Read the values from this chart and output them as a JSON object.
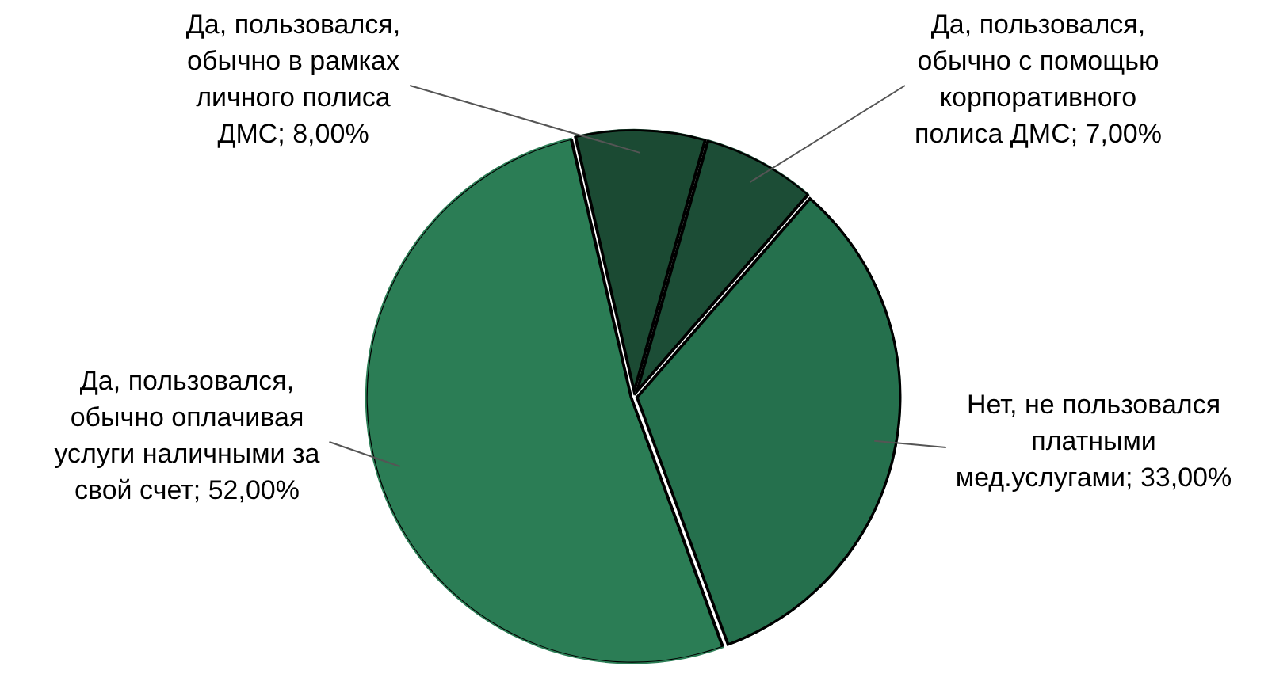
{
  "chart_data": {
    "type": "pie",
    "categories": [
      "Да, пользовался, обычно в рамках личного полиса ДМС",
      "Да, пользовался, обычно с помощью корпоративного полиса ДМС",
      "Нет, не пользовался платными мед.услугами",
      "Да, пользовался, обычно оплачивая услуги наличными за свой счет"
    ],
    "values": [
      8,
      7,
      33,
      52
    ],
    "colors": [
      "#1b4a33",
      "#1c4d36",
      "#25704d",
      "#2b7d55"
    ],
    "value_labels": [
      "8,00%",
      "7,00%",
      "33,00%",
      "52,00%"
    ],
    "legend": false
  }
}
